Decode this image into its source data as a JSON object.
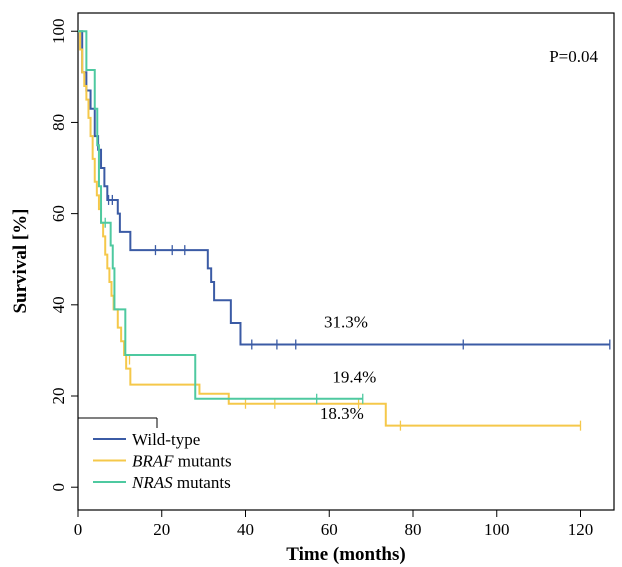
{
  "chart_data": {
    "type": "line",
    "xlabel": "Time (months)",
    "ylabel": "Survival [%]",
    "xlim": [
      0,
      128
    ],
    "ylim": [
      -5,
      104
    ],
    "xticks": [
      0,
      20,
      40,
      60,
      80,
      100,
      120
    ],
    "yticks": [
      0,
      20,
      40,
      60,
      80,
      100
    ],
    "pvalue": "P=0.04",
    "legend_position": "bottom-left",
    "series": [
      {
        "name": "Wild-type",
        "name_italic": "",
        "name_rest": "Wild-type",
        "color": "#3b5ba5",
        "steps": [
          [
            0,
            100
          ],
          [
            1,
            91
          ],
          [
            2,
            87
          ],
          [
            3,
            83
          ],
          [
            4,
            77
          ],
          [
            4.8,
            74
          ],
          [
            5.5,
            70
          ],
          [
            6.3,
            66
          ],
          [
            7,
            63
          ],
          [
            9.5,
            60
          ],
          [
            10,
            56
          ],
          [
            12.5,
            52
          ],
          [
            31,
            48
          ],
          [
            31.8,
            45
          ],
          [
            32.5,
            41
          ],
          [
            36.5,
            36
          ],
          [
            38.8,
            31.3
          ],
          [
            127,
            31.3
          ]
        ],
        "censor": [
          [
            7.3,
            63
          ],
          [
            8.2,
            63
          ],
          [
            18.5,
            52
          ],
          [
            22.5,
            52
          ],
          [
            25.5,
            52
          ],
          [
            41.5,
            31.3
          ],
          [
            47.5,
            31.3
          ],
          [
            52,
            31.3
          ],
          [
            92,
            31.3
          ],
          [
            127,
            31.3
          ]
        ]
      },
      {
        "name": "BRAF mutants",
        "name_italic": "BRAF",
        "name_rest": " mutants",
        "color": "#f5c84a",
        "steps": [
          [
            0,
            100
          ],
          [
            0.5,
            96
          ],
          [
            1,
            91
          ],
          [
            1.5,
            88
          ],
          [
            2,
            85
          ],
          [
            2.5,
            81
          ],
          [
            3,
            77
          ],
          [
            3.5,
            72
          ],
          [
            4,
            67
          ],
          [
            4.5,
            64
          ],
          [
            5,
            61
          ],
          [
            5.5,
            58
          ],
          [
            6,
            55
          ],
          [
            6.5,
            51
          ],
          [
            7,
            48
          ],
          [
            7.5,
            45
          ],
          [
            8,
            42
          ],
          [
            8.5,
            39
          ],
          [
            9.5,
            35
          ],
          [
            10.3,
            32
          ],
          [
            11,
            29
          ],
          [
            11.5,
            26
          ],
          [
            12.5,
            22.5
          ],
          [
            28,
            22.5
          ],
          [
            29,
            20.5
          ],
          [
            36,
            18.3
          ],
          [
            73,
            18.3
          ],
          [
            73.5,
            13.5
          ],
          [
            120,
            13.5
          ]
        ],
        "censor": [
          [
            11.5,
            27
          ],
          [
            12.3,
            28
          ],
          [
            40,
            18.3
          ],
          [
            47,
            18.3
          ],
          [
            67,
            18.3
          ],
          [
            77,
            13.5
          ],
          [
            120,
            13.5
          ]
        ]
      },
      {
        "name": "NRAS mutants",
        "name_italic": "NRAS",
        "name_rest": " mutants",
        "color": "#4ec9a0",
        "steps": [
          [
            0,
            100
          ],
          [
            2,
            91.5
          ],
          [
            4,
            83
          ],
          [
            4.6,
            75
          ],
          [
            5,
            66
          ],
          [
            5.5,
            58
          ],
          [
            7.8,
            53
          ],
          [
            8.3,
            48
          ],
          [
            8.7,
            39
          ],
          [
            11.3,
            29
          ],
          [
            28,
            19.4
          ],
          [
            68,
            19.4
          ]
        ],
        "censor": [
          [
            6.5,
            58
          ],
          [
            57,
            19.4
          ],
          [
            68,
            19.4
          ]
        ]
      }
    ],
    "annotations": [
      {
        "text": "31.3%",
        "x": 64,
        "y": 35
      },
      {
        "text": "19.4%",
        "x": 66,
        "y": 23
      },
      {
        "text": "18.3%",
        "x": 63,
        "y": 15
      }
    ]
  }
}
